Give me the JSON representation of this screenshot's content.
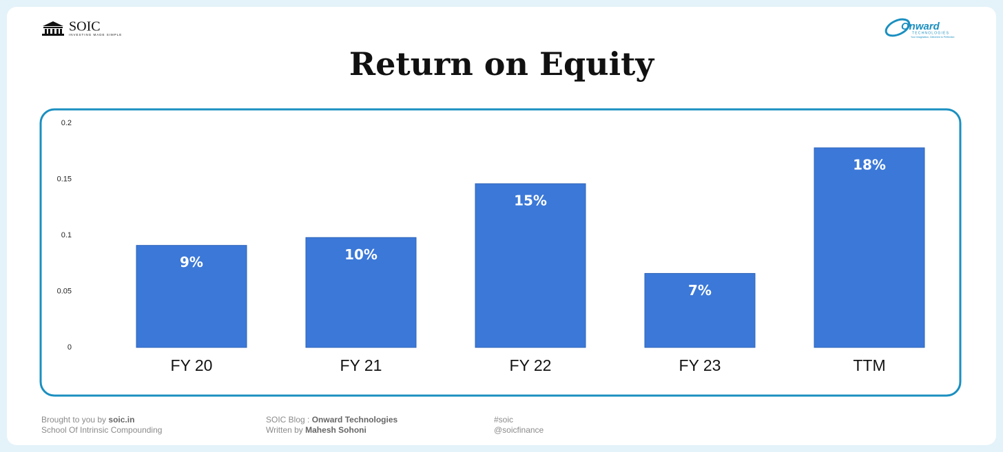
{
  "header": {
    "brand": "SOIC",
    "brand_tagline": "INVESTING MADE SIMPLE",
    "company_logo": "Onward",
    "company_logo_sub": "TECHNOLOGIES",
    "company_tagline": "Your Imagination, Delivered to Perfection"
  },
  "chart_data": {
    "type": "bar",
    "title": "Return on Equity",
    "categories": [
      "FY 20",
      "FY 21",
      "FY 22",
      "FY 23",
      "TTM"
    ],
    "values": [
      0.091,
      0.098,
      0.146,
      0.066,
      0.178
    ],
    "value_labels": [
      "9%",
      "10%",
      "15%",
      "7%",
      "18%"
    ],
    "color": "#3b78d8",
    "ylim": [
      0,
      0.2
    ],
    "yticks": [
      0,
      0.05,
      0.1,
      0.15,
      0.2
    ],
    "grid": false
  },
  "footer": {
    "col1_prefix": "Brought to you by ",
    "col1_link": "soic.in",
    "col1_line2": "School Of Intrinsic Compounding",
    "col2_prefix": "SOIC Blog : ",
    "col2_link": "Onward Technologies",
    "col2_line2_prefix": "Written by ",
    "col2_line2_name": "Mahesh Sohoni",
    "col3_line1": "#soic",
    "col3_line2": "@soicfinance"
  }
}
